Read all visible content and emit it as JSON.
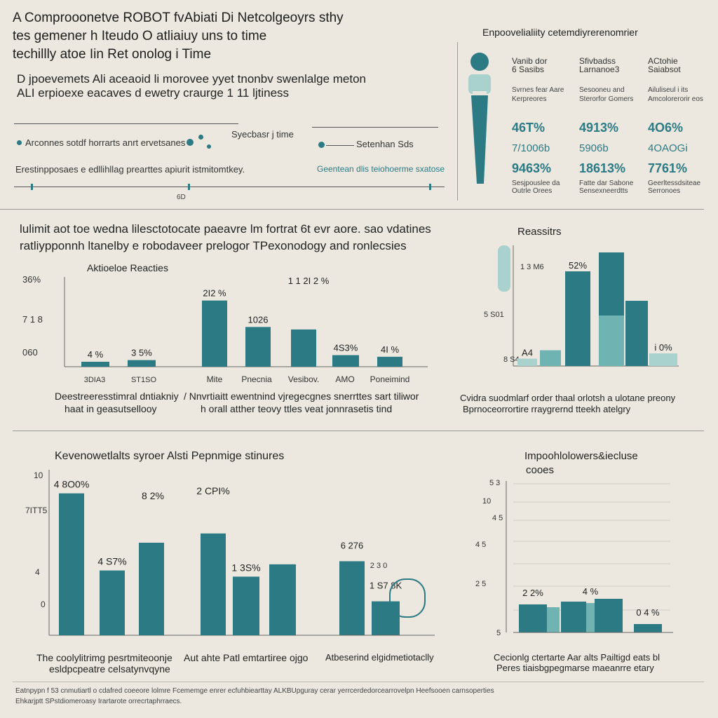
{
  "colors": {
    "teal": "#2b7a84",
    "teal_light": "#6fb3b2",
    "teal_pale": "#a9d2cf",
    "axis": "#666666",
    "bg": "#ece8df"
  },
  "header": {
    "title_lines": [
      "A Comprooonetve ROBOT fvAbiati Di Netcolgeoyrs sthy",
      "tes gemener h Iteudo O atliaiuy uns to time",
      "techillly atoe Iin Ret onolog i Time"
    ],
    "subtitle_lines": [
      "D jpoevemets Ali aceaoid li morovee yyet tnonbv swenlalge meton",
      "ALI erpioexe eacaves d ewetry craurge 1 11 ljtiness"
    ]
  },
  "timeline": {
    "row1_label": "Arconnes sotdf horrarts anrt ervetsanes",
    "row1_marker": "Syecbasr j time",
    "row1_right": "Setenhan Sds",
    "row2_label": "Erestinpposaes e edllihllag prearttes apiurit istmitomtkey.",
    "row2_right": "Geentean dlis teiohoerme sxatose",
    "scale_mark": "6D"
  },
  "stats_panel": {
    "title": "Enpoovelialiity cetemdiyrerenomrier",
    "columns": [
      {
        "head1": "Vanib dor",
        "head2": "6 Sasibs",
        "desc": "Svrnes fear Aare Kerpreores",
        "v1": "46T%",
        "v2": "7/1006b",
        "v3": "9463%",
        "foot1": "Sesjpouslee da",
        "foot2": "Outrle Orees"
      },
      {
        "head1": "Sfivbadss",
        "head2": "Larnanoe3",
        "desc": "Sesooneu and Sterorfor Gomers",
        "v1": "4913%",
        "v2": "5906b",
        "v3": "18613%",
        "foot1": "Fatte dar Sabone",
        "foot2": "Sensexneerdtts"
      },
      {
        "head1": "ACtohie",
        "head2": "Saiabsot",
        "desc": "Ailuliseul i its Amcolorerorir eos",
        "v1": "4O6%",
        "v2": "4OAOGi",
        "v3": "7761%",
        "foot1": "Geerltessdsiteae",
        "foot2": "Serronoes"
      }
    ]
  },
  "section2": {
    "heading_lines": [
      "lulimit aot toe wedna lilesctotocate paeavre lm fortrat 6t evr aore. sao vdatines",
      "ratliypponnh ltanelby e robodaveer prelogor TPexonodogy and ronlecsies"
    ],
    "left_chart_title": "Aktioeloe Reacties",
    "left_caption": [
      "Deestreeresstimral dntiakniy",
      "haat in geasutsellooy"
    ],
    "mid_caption": [
      "/ Nnvrtiaitt ewentnind vjregecgnes snerrttes sart tiliwor",
      "h orall atther teovy ttles veat jonnrasetis tind"
    ],
    "right_chart_title": "Reassitrs",
    "right_caption": [
      "Cvidra suodmlarf order thaal orlotsh a ulotane preony",
      "Bprnoceorrortire rraygrernd tteekh atelgry"
    ]
  },
  "section3": {
    "left_title": "Kevenowetlalts syroer Alsti Pepnmige stinures",
    "left_caption": [
      "The coolylitrimg pesrtmiteoonje",
      "esldpcpeatre celsatynvqyne"
    ],
    "mid_caption": "Aut ahte Patl emtartiree ojgo",
    "mid2_caption": "Atbeserind elgidmetiotaclly",
    "right_title_lines": [
      "Impoohlolowers&iecluse",
      "cooes"
    ],
    "right_caption": [
      "Cecionlg ctertarte Aar alts Pailtigd eats bl",
      "Peres tiaisbgpegmarse maeanrre etary"
    ]
  },
  "footnotes": [
    "Eatnpypn f 53 cnmutiartl o cdafred coeeore lolmre Fcememge enrer ecfuhbiearttay ALKBUpguray cerar yerrcerdedorcearrovelpn Heefsooen carnsoperties",
    "Ehkarjptt SPstdiomeroasy Irartarote orrecrtaphrraecs."
  ],
  "chart_data": [
    {
      "type": "bar",
      "title": "Aktioeloe Reacties",
      "categories": [
        "Mite",
        "Pnecnia",
        "Vesibov.",
        "AMO",
        "Poneimind"
      ],
      "series": [
        {
          "name": "",
          "values": [
            8.0,
            10.0,
            40.0,
            12.0,
            8.0
          ],
          "labels": [
            "4 %",
            "3 5%",
            "2I2 %",
            "4S3%",
            "4I %"
          ]
        },
        {
          "name": "",
          "values": [
            0,
            0,
            25.0,
            0,
            0
          ],
          "labels": [
            "",
            "",
            "",
            "",
            ""
          ]
        }
      ],
      "mid_labels": [
        "1026",
        "1 1 2I 2 %"
      ],
      "tick_labels": [
        "36%",
        "7 1 8",
        "060"
      ],
      "cat_sub": [
        "3DIA3",
        "ST1SO"
      ],
      "ylim": [
        0,
        50
      ]
    },
    {
      "type": "bar",
      "title": "Reassitrs",
      "categories": [
        "",
        "",
        "",
        "",
        "",
        ""
      ],
      "values": [
        7,
        15,
        90,
        72,
        62,
        12
      ],
      "labels": [
        "A4",
        "",
        "52%",
        "",
        "",
        "i 0%"
      ],
      "tick_labels": [
        "1 3 M6",
        "5 S01",
        "8 S4"
      ],
      "ylim": [
        0,
        100
      ]
    },
    {
      "type": "bar",
      "title": "Kevenowetlalts syroer Alsti Pepnmige stinures",
      "categories": [
        "",
        "",
        "",
        "",
        "",
        ""
      ],
      "values": [
        84,
        40,
        57,
        65,
        37,
        51
      ],
      "labels": [
        "4 8O0%",
        "4 S7%",
        "8 2%",
        "2 CPI%",
        "1 3S%",
        ""
      ],
      "tick_labels": [
        "10",
        "7ITT5",
        "4",
        "0"
      ],
      "ylim": [
        0,
        100
      ]
    },
    {
      "type": "bar",
      "title": "",
      "categories": [
        "",
        ""
      ],
      "values": [
        48,
        22
      ],
      "labels": [
        "6 276",
        "1 S7 8K"
      ],
      "tick_labels": [
        "2 3 0"
      ],
      "ylim": [
        0,
        100
      ]
    },
    {
      "type": "bar",
      "title": "Impoohlolowers&iecluse",
      "categories": [
        "",
        "",
        "",
        "",
        "",
        ""
      ],
      "values": [
        20,
        18,
        22,
        21,
        24,
        6
      ],
      "labels": [
        "2 2%",
        "",
        "",
        "4 %",
        "",
        "0 4 %"
      ],
      "tick_labels": [
        "5 3",
        "10",
        "4 5",
        "4 5",
        "2 5",
        "5"
      ],
      "ylim": [
        0,
        100
      ]
    }
  ]
}
